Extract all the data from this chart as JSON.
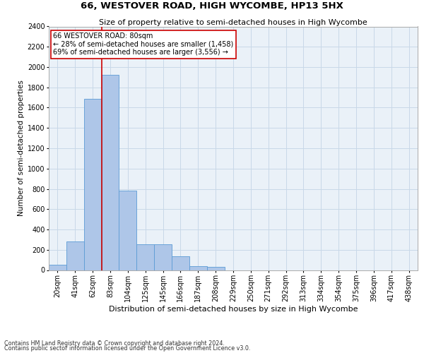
{
  "title": "66, WESTOVER ROAD, HIGH WYCOMBE, HP13 5HX",
  "subtitle": "Size of property relative to semi-detached houses in High Wycombe",
  "xlabel": "Distribution of semi-detached houses by size in High Wycombe",
  "ylabel": "Number of semi-detached properties",
  "footer_line1": "Contains HM Land Registry data © Crown copyright and database right 2024.",
  "footer_line2": "Contains public sector information licensed under the Open Government Licence v3.0.",
  "bar_labels": [
    "20sqm",
    "41sqm",
    "62sqm",
    "83sqm",
    "104sqm",
    "125sqm",
    "145sqm",
    "166sqm",
    "187sqm",
    "208sqm",
    "229sqm",
    "250sqm",
    "271sqm",
    "292sqm",
    "313sqm",
    "334sqm",
    "354sqm",
    "375sqm",
    "396sqm",
    "417sqm",
    "438sqm"
  ],
  "bar_values": [
    55,
    285,
    1690,
    1920,
    785,
    255,
    255,
    135,
    35,
    30,
    0,
    0,
    0,
    0,
    0,
    0,
    0,
    0,
    0,
    0,
    0
  ],
  "bar_color": "#aec6e8",
  "bar_edge_color": "#5b9bd5",
  "ylim": [
    0,
    2400
  ],
  "yticks": [
    0,
    200,
    400,
    600,
    800,
    1000,
    1200,
    1400,
    1600,
    1800,
    2000,
    2200,
    2400
  ],
  "property_label": "66 WESTOVER ROAD: 80sqm",
  "annotation_line1": "← 28% of semi-detached houses are smaller (1,458)",
  "annotation_line2": "69% of semi-detached houses are larger (3,556) →",
  "vline_x_index": 3,
  "annotation_box_color": "#ffffff",
  "annotation_box_edge": "#cc0000",
  "vline_color": "#cc0000",
  "grid_color": "#c8d8e8",
  "bg_color": "#eaf1f8",
  "title_fontsize": 9.5,
  "subtitle_fontsize": 8,
  "ylabel_fontsize": 7.5,
  "xlabel_fontsize": 8,
  "tick_fontsize": 7,
  "annotation_fontsize": 7,
  "footer_fontsize": 5.8
}
